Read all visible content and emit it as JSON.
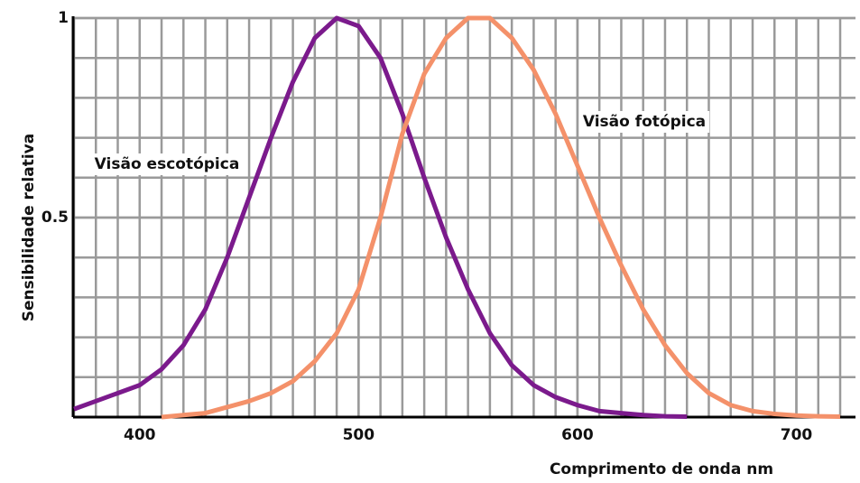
{
  "chart_data": {
    "type": "line",
    "xlabel": "Comprimento de onda   nm",
    "ylabel": "Sensibilidade relativa",
    "xlim": [
      370,
      727
    ],
    "ylim": [
      0,
      1
    ],
    "xticks": [
      400,
      500,
      600,
      700
    ],
    "yticks": [
      0.5,
      1
    ],
    "grid": true,
    "series": [
      {
        "name": "Visão escotópica",
        "color": "#7b1a8c",
        "label_color": "#7b1a8c",
        "x": [
          370,
          380,
          390,
          400,
          410,
          420,
          430,
          440,
          450,
          460,
          470,
          480,
          490,
          500,
          510,
          520,
          530,
          540,
          550,
          560,
          570,
          580,
          590,
          600,
          610,
          620,
          630,
          640,
          650
        ],
        "values": [
          0.02,
          0.04,
          0.06,
          0.08,
          0.12,
          0.18,
          0.27,
          0.4,
          0.55,
          0.7,
          0.84,
          0.95,
          1.0,
          0.98,
          0.9,
          0.76,
          0.6,
          0.45,
          0.32,
          0.21,
          0.13,
          0.08,
          0.05,
          0.03,
          0.015,
          0.01,
          0.005,
          0.002,
          0.001
        ]
      },
      {
        "name": "Visão fotópica",
        "color": "#f4916a",
        "label_color": "#8b3a10",
        "x": [
          410,
          420,
          430,
          440,
          450,
          460,
          470,
          480,
          490,
          500,
          510,
          520,
          530,
          540,
          550,
          560,
          570,
          580,
          590,
          600,
          610,
          620,
          630,
          640,
          650,
          660,
          670,
          680,
          690,
          700,
          710,
          720
        ],
        "values": [
          0.0,
          0.005,
          0.01,
          0.025,
          0.04,
          0.06,
          0.09,
          0.14,
          0.21,
          0.32,
          0.5,
          0.71,
          0.86,
          0.95,
          1.0,
          1.0,
          0.95,
          0.87,
          0.76,
          0.63,
          0.5,
          0.38,
          0.27,
          0.18,
          0.11,
          0.06,
          0.03,
          0.015,
          0.008,
          0.004,
          0.002,
          0.001
        ]
      }
    ]
  }
}
